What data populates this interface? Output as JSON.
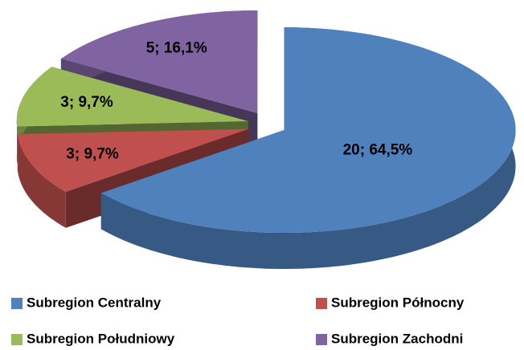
{
  "chart_data": {
    "type": "pie",
    "categories": [
      "Subregion Centralny",
      "Subregion Północny",
      "Subregion Południowy",
      "Subregion Zachodni"
    ],
    "values": [
      20,
      3,
      3,
      5
    ],
    "value_labels": [
      "20; 64,5%",
      "3; 9,7%",
      "3; 9,7%",
      "5; 16,1%"
    ],
    "colors": [
      "#4f81bd",
      "#c0504d",
      "#9bbb59",
      "#8064a2"
    ],
    "legend": "bottom"
  }
}
